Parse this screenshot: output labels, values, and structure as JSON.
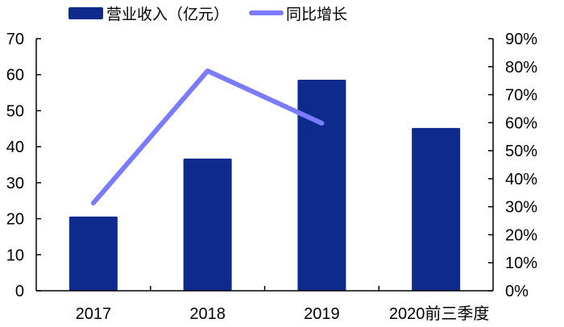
{
  "chart_data": {
    "type": "bar+line",
    "title": "",
    "categories": [
      "2017",
      "2018",
      "2019",
      "2020前三季度"
    ],
    "series": [
      {
        "name": "营业收入（亿元）",
        "type": "bar",
        "axis": "left",
        "color": "#0d2a8c",
        "values": [
          20.6,
          36.7,
          58.6,
          45.2
        ]
      },
      {
        "name": "同比增长",
        "type": "line",
        "axis": "right",
        "color": "#7b7bff",
        "values": [
          31.3,
          78.5,
          59.8,
          null
        ],
        "unit": "%"
      }
    ],
    "left_axis": {
      "ylim": [
        0,
        70
      ],
      "ticks": [
        "0",
        "10",
        "20",
        "30",
        "40",
        "50",
        "60",
        "70"
      ]
    },
    "right_axis": {
      "ylim": [
        0,
        90
      ],
      "ticks": [
        "0%",
        "10%",
        "20%",
        "30%",
        "40%",
        "50%",
        "60%",
        "70%",
        "80%",
        "90%"
      ]
    },
    "xlabel": "",
    "ylabel": "",
    "grid": false,
    "legend_position": "top"
  },
  "legend": {
    "bar_label": "营业收入（亿元）",
    "line_label": "同比增长"
  }
}
